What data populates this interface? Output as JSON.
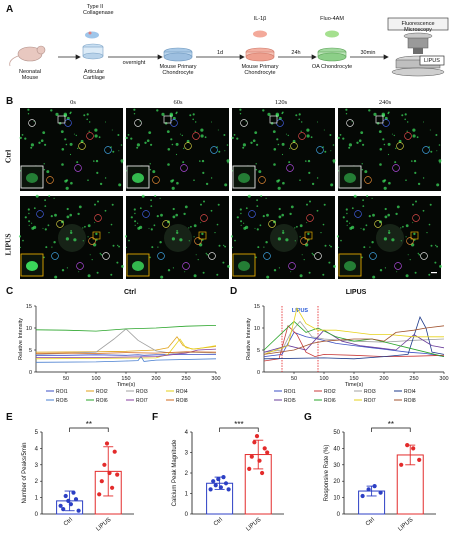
{
  "panels": {
    "A": "A",
    "B": "B",
    "C": "C",
    "D": "D",
    "E": "E",
    "F": "F",
    "G": "G"
  },
  "panel_a": {
    "steps": [
      {
        "top": "",
        "bottom": "Neonatal\nMouse"
      },
      {
        "top": "Type II\nCollagenase",
        "bottom": "Articular\nCartilage"
      },
      {
        "top": "",
        "bottom": "Mouse Primary\nChondrocyte"
      },
      {
        "top": "IL-1β",
        "bottom": "Mouse Primary\nChondrocyte"
      },
      {
        "top": "Fluo-4AM",
        "bottom": "OA Chondrocyte"
      }
    ],
    "arrows": [
      "overnight",
      "1d",
      "24h",
      "30min"
    ],
    "microscope_label": "Fluorescence Microscopy",
    "lipus_label": "LIPUS"
  },
  "panel_b": {
    "times": [
      "0s",
      "60s",
      "120s",
      "240s"
    ],
    "rows": [
      "Ctrl",
      "LIPUS"
    ],
    "colors": {
      "green": "#3bd65a",
      "box_white": "#e8e8e8",
      "box_gold": "#e0a800"
    }
  },
  "panel_c": {
    "chart_data": {
      "type": "line",
      "title": "Ctrl",
      "xlabel": "Time(s)",
      "ylabel": "Relative Intensity",
      "xlim": [
        0,
        300
      ],
      "ylim": [
        0,
        15
      ],
      "xticks": [
        50,
        100,
        150,
        200,
        250,
        300
      ],
      "yticks": [
        0,
        5,
        10,
        15
      ],
      "series": [
        {
          "name": "ROI1",
          "color": "#3b4fc4",
          "x": [
            0,
            50,
            100,
            150,
            170,
            180,
            200,
            250,
            300
          ],
          "y": [
            3.8,
            3.8,
            3.9,
            3.8,
            3.9,
            3.8,
            3.9,
            4.0,
            4.0
          ]
        },
        {
          "name": "ROI2",
          "color": "#e0a21a",
          "x": [
            0,
            100,
            150,
            200,
            220,
            235,
            245,
            260,
            300
          ],
          "y": [
            4.5,
            4.6,
            4.7,
            5.0,
            5.5,
            8.0,
            6.0,
            5.2,
            5.8
          ]
        },
        {
          "name": "ROI3",
          "color": "#a0a0a0",
          "x": [
            0,
            100,
            130,
            150,
            170,
            200,
            230,
            260,
            300
          ],
          "y": [
            4.0,
            4.5,
            7.5,
            9.8,
            7.2,
            4.8,
            4.2,
            4.5,
            4.3
          ]
        },
        {
          "name": "ROI4",
          "color": "#e6d21a",
          "x": [
            0,
            100,
            200,
            220,
            240,
            250,
            265,
            300
          ],
          "y": [
            3.0,
            3.1,
            3.2,
            4.0,
            7.5,
            5.5,
            5.2,
            6.0
          ]
        },
        {
          "name": "ROI5",
          "color": "#4a7fd0",
          "x": [
            0,
            100,
            150,
            170,
            175,
            180,
            200,
            300
          ],
          "y": [
            2.2,
            2.3,
            2.5,
            2.6,
            3.5,
            2.4,
            2.7,
            3.0
          ]
        },
        {
          "name": "ROI6",
          "color": "#2aa52a",
          "x": [
            0,
            50,
            100,
            150,
            200,
            250,
            300
          ],
          "y": [
            9.6,
            9.5,
            9.3,
            9.8,
            10.0,
            10.4,
            10.6
          ]
        },
        {
          "name": "ROI7",
          "color": "#8a3fa0",
          "x": [
            0,
            100,
            200,
            250,
            270,
            300
          ],
          "y": [
            3.3,
            3.3,
            3.5,
            4.3,
            5.0,
            5.2
          ]
        },
        {
          "name": "ROI8",
          "color": "#d2691e",
          "x": [
            0,
            50,
            100,
            150,
            200,
            250,
            300
          ],
          "y": [
            4.2,
            4.3,
            4.2,
            4.4,
            4.3,
            4.6,
            4.5
          ]
        }
      ],
      "legend": [
        "ROI1",
        "ROI2",
        "ROI3",
        "ROI4",
        "ROI5",
        "ROI6",
        "ROI7",
        "ROI8"
      ]
    }
  },
  "panel_d": {
    "chart_data": {
      "type": "line",
      "title": "LIPUS",
      "annotation": "LIPUS",
      "stim_window": [
        30,
        90
      ],
      "xlabel": "Time(s)",
      "ylabel": "Relative Intensity",
      "xlim": [
        0,
        300
      ],
      "ylim": [
        0,
        15
      ],
      "xticks": [
        50,
        100,
        150,
        200,
        250,
        300
      ],
      "yticks": [
        0,
        5,
        10,
        15
      ],
      "series": [
        {
          "name": "ROI1",
          "color": "#3b4fc4",
          "x": [
            0,
            30,
            50,
            70,
            90,
            120,
            150,
            180,
            210,
            240,
            270,
            300
          ],
          "y": [
            3.5,
            4.0,
            9.0,
            8.0,
            7.5,
            6.5,
            6.0,
            5.5,
            5.0,
            4.5,
            4.2,
            3.5
          ]
        },
        {
          "name": "ROI2",
          "color": "#c83a3a",
          "x": [
            0,
            25,
            40,
            55,
            70,
            85,
            100,
            150,
            200,
            250,
            300
          ],
          "y": [
            2.5,
            3.0,
            10.5,
            8.5,
            4.5,
            3.5,
            4.0,
            3.8,
            3.5,
            3.6,
            3.8
          ]
        },
        {
          "name": "ROI3",
          "color": "#a0a0a0",
          "x": [
            0,
            30,
            45,
            60,
            80,
            100,
            150,
            200,
            250,
            300
          ],
          "y": [
            4.5,
            5.0,
            9.0,
            11.5,
            8.0,
            7.5,
            7.0,
            6.8,
            7.2,
            7.5
          ]
        },
        {
          "name": "ROI4",
          "color": "#1e3a8a",
          "x": [
            0,
            100,
            150,
            200,
            240,
            260,
            270,
            280,
            300
          ],
          "y": [
            3.0,
            3.2,
            3.0,
            3.5,
            4.0,
            12.5,
            10.0,
            4.5,
            4.0
          ]
        },
        {
          "name": "ROI5",
          "color": "#6a3d9a",
          "x": [
            0,
            40,
            70,
            100,
            130,
            160,
            190,
            220,
            250,
            280,
            300
          ],
          "y": [
            4.5,
            6.0,
            5.0,
            9.5,
            7.0,
            6.0,
            5.5,
            5.0,
            8.5,
            6.0,
            5.5
          ]
        },
        {
          "name": "ROI6",
          "color": "#2aa52a",
          "x": [
            0,
            50,
            70,
            90,
            120,
            150,
            180,
            210,
            240,
            270,
            300
          ],
          "y": [
            5.0,
            11.5,
            9.0,
            10.0,
            8.0,
            7.0,
            7.5,
            6.5,
            5.5,
            4.5,
            3.5
          ]
        },
        {
          "name": "ROI7",
          "color": "#e6d21a",
          "x": [
            0,
            40,
            55,
            70,
            90,
            120,
            150,
            180,
            210,
            250,
            300
          ],
          "y": [
            4.0,
            6.0,
            14.5,
            11.0,
            9.5,
            9.5,
            9.0,
            8.5,
            8.5,
            8.0,
            8.0
          ]
        },
        {
          "name": "ROI8",
          "color": "#a0522d",
          "x": [
            0,
            50,
            80,
            100,
            150,
            180,
            200,
            220,
            250,
            270,
            300
          ],
          "y": [
            4.0,
            5.0,
            6.5,
            7.0,
            7.5,
            7.5,
            7.0,
            9.0,
            9.5,
            10.0,
            10.5
          ]
        }
      ],
      "legend": [
        "ROI1",
        "ROI2",
        "ROI3",
        "ROI4",
        "ROI5",
        "ROI6",
        "ROI7",
        "ROI8"
      ]
    }
  },
  "panel_e": {
    "chart_data": {
      "type": "bar",
      "categories": [
        "Ctrl",
        "LIPUS"
      ],
      "values": [
        0.8,
        2.6
      ],
      "errors": [
        0.6,
        1.5
      ],
      "points": [
        [
          0.5,
          0.3,
          1.1,
          0.8,
          0.6,
          1.3,
          0.9,
          0.2
        ],
        [
          1.2,
          2.0,
          3.0,
          4.3,
          2.5,
          1.6,
          3.8,
          2.4
        ]
      ],
      "ylabel": "Number of Peaks/5min",
      "ylim": [
        0,
        5
      ],
      "yticks": [
        0,
        1,
        2,
        3,
        4,
        5
      ],
      "significance": "**",
      "colors": [
        "#2c3fc4",
        "#e32b2b"
      ]
    }
  },
  "panel_f": {
    "chart_data": {
      "type": "bar",
      "categories": [
        "Ctrl",
        "LIPUS"
      ],
      "values": [
        1.5,
        2.9
      ],
      "errors": [
        0.3,
        0.7
      ],
      "points": [
        [
          1.2,
          1.6,
          1.4,
          1.7,
          1.3,
          1.8,
          1.5,
          1.2
        ],
        [
          2.2,
          2.8,
          3.5,
          3.8,
          2.6,
          2.0,
          3.2,
          3.0
        ]
      ],
      "ylabel": "Calcium Peak Magnitude",
      "ylim": [
        0,
        4
      ],
      "yticks": [
        0,
        1,
        2,
        3,
        4
      ],
      "significance": "***",
      "colors": [
        "#2c3fc4",
        "#e32b2b"
      ]
    }
  },
  "panel_g": {
    "chart_data": {
      "type": "bar",
      "categories": [
        "Ctrl",
        "LIPUS"
      ],
      "values": [
        14,
        36
      ],
      "errors": [
        3,
        6
      ],
      "points": [
        [
          11,
          15,
          17,
          13
        ],
        [
          30,
          42,
          40,
          33
        ]
      ],
      "ylabel": "Responsive Rate (%)",
      "ylim": [
        0,
        50
      ],
      "yticks": [
        0,
        10,
        20,
        30,
        40,
        50
      ],
      "significance": "**",
      "colors": [
        "#2c3fc4",
        "#e32b2b"
      ]
    }
  }
}
